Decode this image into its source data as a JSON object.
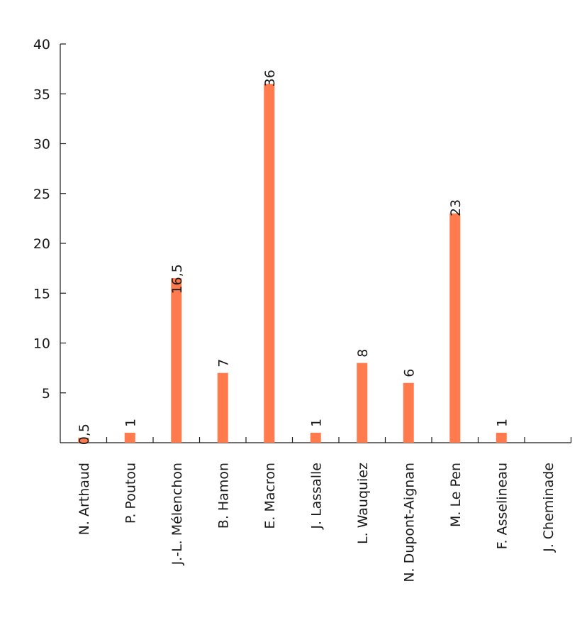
{
  "chart_data": {
    "type": "bar",
    "title": "",
    "xlabel": "",
    "ylabel": "",
    "categories": [
      "N. Arthaud",
      "P. Poutou",
      "J.-L. Mélenchon",
      "B. Hamon",
      "E. Macron",
      "J. Lassalle",
      "L. Wauquiez",
      "N. Dupont-Aignan",
      "M. Le Pen",
      "F. Asselineau",
      "J. Cheminade"
    ],
    "values": [
      0.5,
      1,
      16.5,
      7,
      36,
      1,
      8,
      6,
      23,
      1,
      null
    ],
    "data_labels": [
      "0,5",
      "1",
      "16,5",
      "7",
      "36",
      "1",
      "8",
      "6",
      "23",
      "1",
      ""
    ],
    "ylim": [
      0,
      40
    ],
    "yticks": [
      5,
      10,
      15,
      20,
      25,
      30,
      35,
      40
    ],
    "ytick_labels": [
      "5",
      "10",
      "15",
      "20",
      "25",
      "30",
      "35",
      "40"
    ],
    "grid": false,
    "legend": "none",
    "colors": {
      "bar": "#ff7b4d",
      "axis": "#1a1a1a",
      "text": "#1a1a1a"
    }
  }
}
